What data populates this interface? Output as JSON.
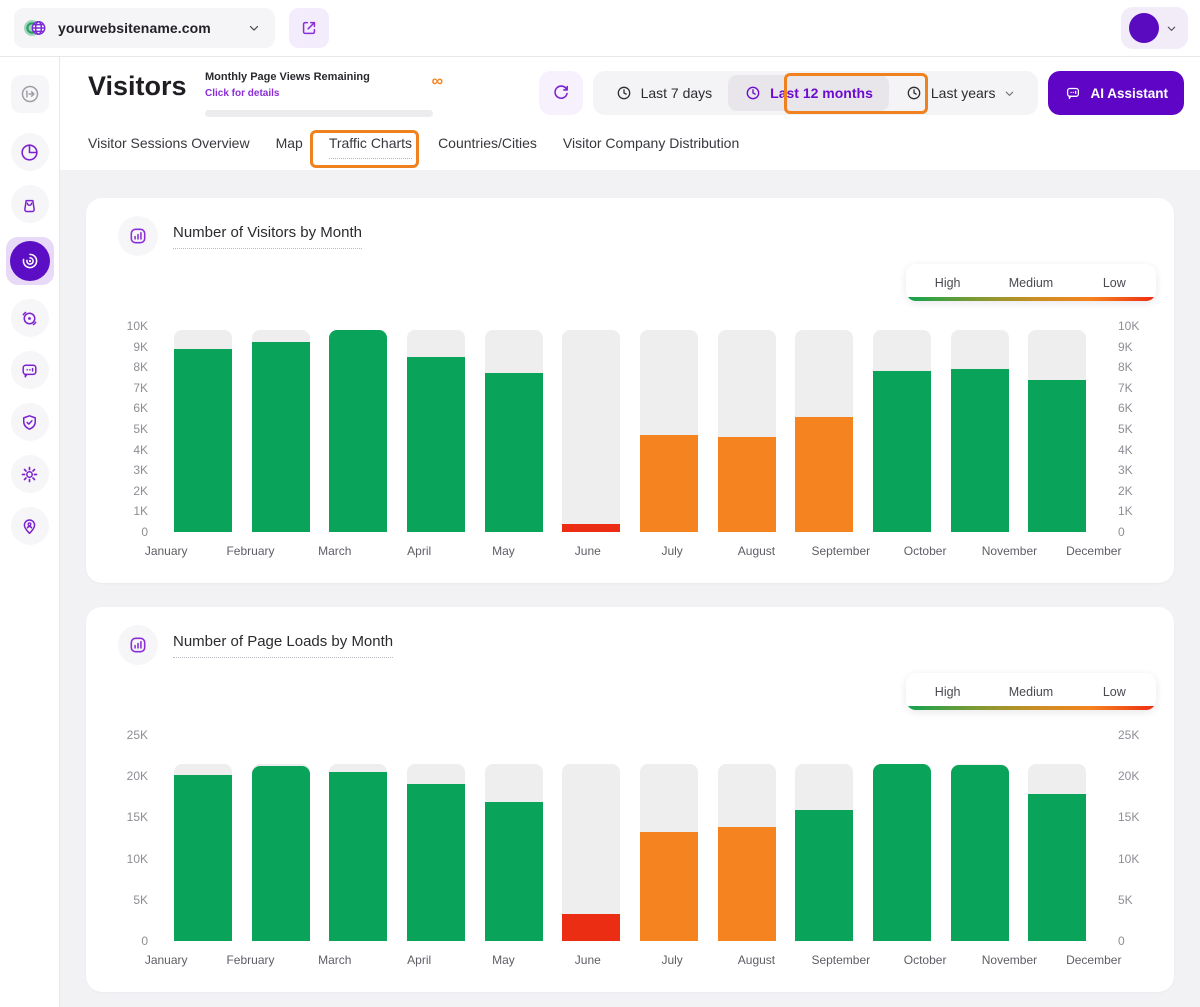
{
  "topbar": {
    "website": "yourwebsitename.com"
  },
  "header": {
    "title": "Visitors",
    "pageviews": {
      "label": "Monthly Page Views Remaining",
      "link": "Click for details",
      "remaining": "∞"
    },
    "controls": {
      "ranges": [
        {
          "label": "Last 7 days",
          "active": false
        },
        {
          "label": "Last 12 months",
          "active": true,
          "annotated": true
        },
        {
          "label": "Last years",
          "active": false,
          "dropdown": true
        }
      ],
      "ai_button": "AI Assistant"
    }
  },
  "tabs": [
    {
      "label": "Visitor Sessions Overview",
      "active": false
    },
    {
      "label": "Map",
      "active": false
    },
    {
      "label": "Traffic Charts",
      "active": true,
      "annotated": true
    },
    {
      "label": "Countries/Cities",
      "active": false
    },
    {
      "label": "Visitor Company Distribution",
      "active": false
    }
  ],
  "legend": {
    "high": "High",
    "medium": "Medium",
    "low": "Low"
  },
  "sidebar": {
    "icons": [
      "collapse-sidebar-icon",
      "pie-chart-icon",
      "shopping-bag-icon",
      "visitors-radar-icon",
      "recordings-icon",
      "feedback-chat-icon",
      "privacy-shield-icon",
      "settings-gear-icon",
      "location-pin-icon"
    ],
    "active_index": 3
  },
  "colors": {
    "green": "#09a35a",
    "orange": "#f5831f",
    "red": "#ea2d13",
    "track": "#efeeef",
    "purple": "#6d0bd0",
    "annotation": "#f0811f"
  },
  "chart_data": [
    {
      "type": "bar",
      "title": "Number of Visitors by Month",
      "categories": [
        "January",
        "February",
        "March",
        "April",
        "May",
        "June",
        "July",
        "August",
        "September",
        "October",
        "November",
        "December"
      ],
      "values": [
        8900,
        9200,
        9800,
        8500,
        7700,
        400,
        4700,
        4600,
        5600,
        7800,
        7900,
        7400
      ],
      "levels": [
        "high",
        "high",
        "high",
        "high",
        "high",
        "low",
        "medium",
        "medium",
        "medium",
        "high",
        "high",
        "high"
      ],
      "track_value": 9800,
      "ylim": [
        0,
        10000
      ],
      "yticks": [
        {
          "v": 10000,
          "label": "10K"
        },
        {
          "v": 9000,
          "label": "9K"
        },
        {
          "v": 8000,
          "label": "8K"
        },
        {
          "v": 7000,
          "label": "7K"
        },
        {
          "v": 6000,
          "label": "6K"
        },
        {
          "v": 5000,
          "label": "5K"
        },
        {
          "v": 4000,
          "label": "4K"
        },
        {
          "v": 3000,
          "label": "3K"
        },
        {
          "v": 2000,
          "label": "2K"
        },
        {
          "v": 1000,
          "label": "1K"
        },
        {
          "v": 0,
          "label": "0"
        }
      ],
      "legend_position": "top-right",
      "grid": false
    },
    {
      "type": "bar",
      "title": "Number of Page Loads by Month",
      "categories": [
        "January",
        "February",
        "March",
        "April",
        "May",
        "June",
        "July",
        "August",
        "September",
        "October",
        "November",
        "December"
      ],
      "values": [
        20200,
        21200,
        20500,
        19100,
        16900,
        3300,
        13200,
        13800,
        15900,
        21500,
        21400,
        17800
      ],
      "levels": [
        "high",
        "high",
        "high",
        "high",
        "high",
        "low",
        "medium",
        "medium",
        "high",
        "high",
        "high",
        "high"
      ],
      "track_value": 21500,
      "ylim": [
        0,
        25000
      ],
      "yticks": [
        {
          "v": 25000,
          "label": "25K"
        },
        {
          "v": 20000,
          "label": "20K"
        },
        {
          "v": 15000,
          "label": "15K"
        },
        {
          "v": 10000,
          "label": "10K"
        },
        {
          "v": 5000,
          "label": "5K"
        },
        {
          "v": 0,
          "label": "0"
        }
      ],
      "legend_position": "top-right",
      "grid": false
    }
  ]
}
